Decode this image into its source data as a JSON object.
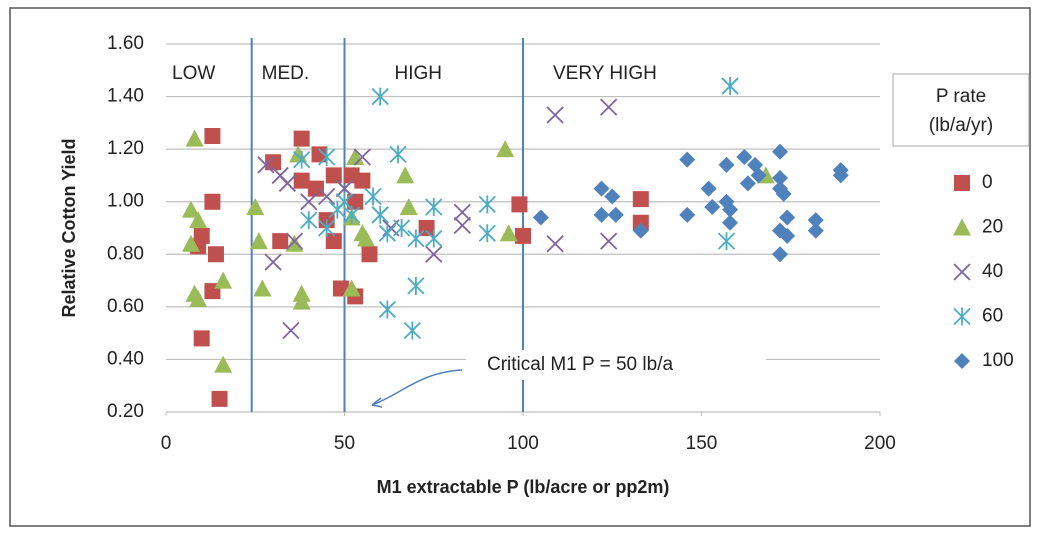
{
  "chart_data": {
    "type": "scatter",
    "x_label": "M1 extractable P (lb/acre or pp2m)",
    "y_label": "Relative Cotton Yield",
    "xlim": [
      0,
      200
    ],
    "ylim": [
      0.2,
      1.6
    ],
    "xticks": [
      0,
      50,
      100,
      150,
      200
    ],
    "yticks": [
      {
        "value": 0.2,
        "label": "0.20"
      },
      {
        "value": 0.4,
        "label": "0.40"
      },
      {
        "value": 0.6,
        "label": "0.60"
      },
      {
        "value": 0.8,
        "label": "0.80"
      },
      {
        "value": 1.0,
        "label": "1.00"
      },
      {
        "value": 1.2,
        "label": "1.20"
      },
      {
        "value": 1.4,
        "label": "1.40"
      },
      {
        "value": 1.6,
        "label": "1.60"
      }
    ],
    "grid": true,
    "zone_lines": [
      24,
      50,
      100
    ],
    "zone_line_color": "#4f81bd",
    "zones": [
      "LOW",
      "MED.",
      "HIGH",
      "VERY HIGH"
    ],
    "annotation": "Critical M1 P = 50 lb/a",
    "legend_title": [
      "P rate",
      "(lb/a/yr)"
    ],
    "legend_position": "right",
    "series": [
      {
        "name": "0",
        "color": "#c0504d",
        "marker": "square",
        "x": [
          13,
          13,
          10,
          9,
          14,
          13,
          10,
          15,
          30,
          38,
          43,
          38,
          42,
          47,
          52,
          55,
          45,
          47,
          32,
          49,
          53,
          57,
          53,
          73,
          99,
          100,
          133,
          133
        ],
        "values": [
          1.25,
          1.0,
          0.87,
          0.83,
          0.8,
          0.66,
          0.48,
          0.25,
          1.15,
          1.24,
          1.18,
          1.08,
          1.05,
          1.1,
          1.1,
          1.08,
          0.93,
          0.85,
          0.85,
          0.67,
          0.64,
          0.8,
          1.0,
          0.9,
          0.99,
          0.87,
          1.01,
          0.92
        ]
      },
      {
        "name": "20",
        "color": "#9bbb59",
        "marker": "triangle",
        "x": [
          8,
          7,
          9,
          7,
          8,
          9,
          16,
          16,
          25,
          26,
          27,
          38,
          38,
          37,
          53,
          52,
          55,
          52,
          67,
          68,
          56,
          95,
          96,
          168,
          36
        ],
        "values": [
          1.24,
          0.97,
          0.93,
          0.84,
          0.65,
          0.63,
          0.7,
          0.38,
          0.98,
          0.85,
          0.67,
          0.65,
          0.62,
          1.18,
          1.17,
          0.94,
          0.88,
          0.67,
          1.1,
          0.98,
          0.86,
          1.2,
          0.88,
          1.1,
          0.84
        ]
      },
      {
        "name": "40",
        "color": "#8064a2",
        "marker": "x",
        "x": [
          30,
          35,
          28,
          32,
          34,
          40,
          45,
          55,
          50,
          60,
          63,
          75,
          83,
          83,
          109,
          124,
          109,
          124,
          36
        ],
        "values": [
          0.77,
          0.51,
          1.14,
          1.1,
          1.07,
          1.0,
          1.02,
          1.17,
          1.05,
          0.95,
          0.9,
          0.8,
          0.96,
          0.91,
          1.33,
          1.36,
          0.84,
          0.85,
          0.85
        ]
      },
      {
        "name": "60",
        "color": "#4bacc6",
        "marker": "star",
        "x": [
          60,
          158,
          38,
          45,
          65,
          40,
          45,
          50,
          52,
          58,
          60,
          62,
          66,
          70,
          75,
          75,
          62,
          70,
          69,
          90,
          90,
          157,
          48
        ],
        "values": [
          1.4,
          1.44,
          1.16,
          1.17,
          1.18,
          0.93,
          0.9,
          1.0,
          0.95,
          1.02,
          0.95,
          0.88,
          0.9,
          0.86,
          0.98,
          0.86,
          0.59,
          0.68,
          0.51,
          0.99,
          0.88,
          0.85,
          0.97
        ]
      },
      {
        "name": "100",
        "color": "#4f81bd",
        "marker": "diamond",
        "x": [
          105,
          122,
          122,
          125,
          126,
          133,
          146,
          146,
          152,
          153,
          157,
          157,
          158,
          158,
          162,
          163,
          165,
          166,
          172,
          172,
          172,
          173,
          174,
          172,
          174,
          172,
          182,
          182,
          189,
          189
        ],
        "values": [
          0.94,
          1.05,
          0.95,
          1.02,
          0.95,
          0.89,
          1.16,
          0.95,
          1.05,
          0.98,
          1.14,
          1.0,
          0.97,
          0.92,
          1.17,
          1.07,
          1.14,
          1.1,
          1.19,
          1.09,
          1.05,
          1.03,
          0.94,
          0.89,
          0.87,
          0.8,
          0.93,
          0.89,
          1.12,
          1.1
        ]
      }
    ]
  }
}
